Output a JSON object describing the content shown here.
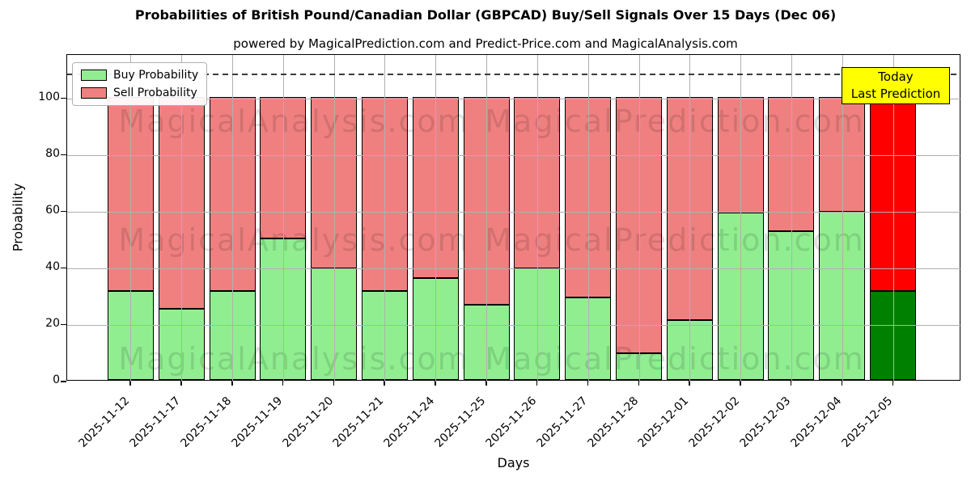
{
  "header": {
    "title": "Probabilities of British Pound/Canadian Dollar (GBPCAD) Buy/Sell Signals Over 15 Days (Dec 06)",
    "subtitle": "powered by MagicalPrediction.com and Predict-Price.com and MagicalAnalysis.com"
  },
  "legend": {
    "items": [
      {
        "label": "Buy Probability",
        "color": "#90EE90"
      },
      {
        "label": "Sell Probability",
        "color": "#F08080"
      }
    ]
  },
  "annotation_box": {
    "line1": "Today",
    "line2": "Last Prediction",
    "bg_color": "#FFFF00",
    "border_color": "#000000"
  },
  "watermark": {
    "left_text": "MagicalAnalysis.com",
    "right_text": "MagicalPrediction.com"
  },
  "chart_data": {
    "type": "bar",
    "stacked": true,
    "title": "Probabilities of British Pound/Canadian Dollar (GBPCAD) Buy/Sell Signals Over 15 Days (Dec 06)",
    "xlabel": "Days",
    "ylabel": "Probability",
    "ylim": [
      0,
      115.4
    ],
    "yticks": [
      0,
      20,
      40,
      60,
      80,
      100
    ],
    "grid": true,
    "legend_position": "upper left",
    "dashed_line_y": 108.9,
    "today_index": 15,
    "categories": [
      "2025-11-12",
      "2025-11-17",
      "2025-11-18",
      "2025-11-19",
      "2025-11-20",
      "2025-11-21",
      "2025-11-24",
      "2025-11-25",
      "2025-11-26",
      "2025-11-27",
      "2025-11-28",
      "2025-12-01",
      "2025-12-02",
      "2025-12-03",
      "2025-12-04",
      "2025-12-05"
    ],
    "series": [
      {
        "name": "Buy Probability",
        "color": "#90EE90",
        "today_color": "#008000",
        "values": [
          31.5,
          25,
          31.5,
          50,
          39.5,
          31.5,
          36,
          26.5,
          39.5,
          29,
          9.5,
          21,
          59,
          52.5,
          59.5,
          31.5
        ]
      },
      {
        "name": "Sell Probability",
        "color": "#F08080",
        "today_color": "#FF0000",
        "values": [
          68.5,
          75,
          68.5,
          50,
          60.5,
          68.5,
          64,
          73.5,
          60.5,
          71,
          90.5,
          79,
          41,
          47.5,
          40.5,
          68.5
        ]
      }
    ],
    "grid_color": "#b0b0b0",
    "bar_edge_color": "#000000"
  }
}
